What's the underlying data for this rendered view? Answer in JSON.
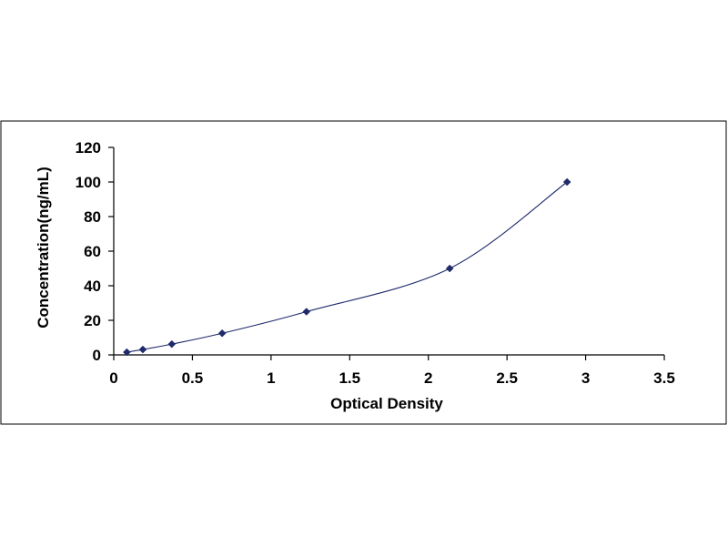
{
  "chart_data": {
    "type": "scatter",
    "xlabel": "Optical Density",
    "ylabel": "Concentration(ng/mL)",
    "xlim": [
      0,
      3.5
    ],
    "ylim": [
      0,
      120
    ],
    "x_ticks": [
      "0",
      "0.5",
      "1",
      "1.5",
      "2",
      "2.5",
      "3",
      "3.5"
    ],
    "y_ticks": [
      "0",
      "20",
      "40",
      "60",
      "80",
      "100",
      "120"
    ],
    "grid": false,
    "legend": "none",
    "series": [
      {
        "x": [
          0.083,
          0.185,
          0.369,
          0.689,
          1.225,
          2.136,
          2.882
        ],
        "y": [
          1.56,
          3.12,
          6.25,
          12.5,
          25,
          50,
          100
        ],
        "marker": "diamond",
        "line": "smooth",
        "color": "#1f2a6b"
      }
    ]
  }
}
